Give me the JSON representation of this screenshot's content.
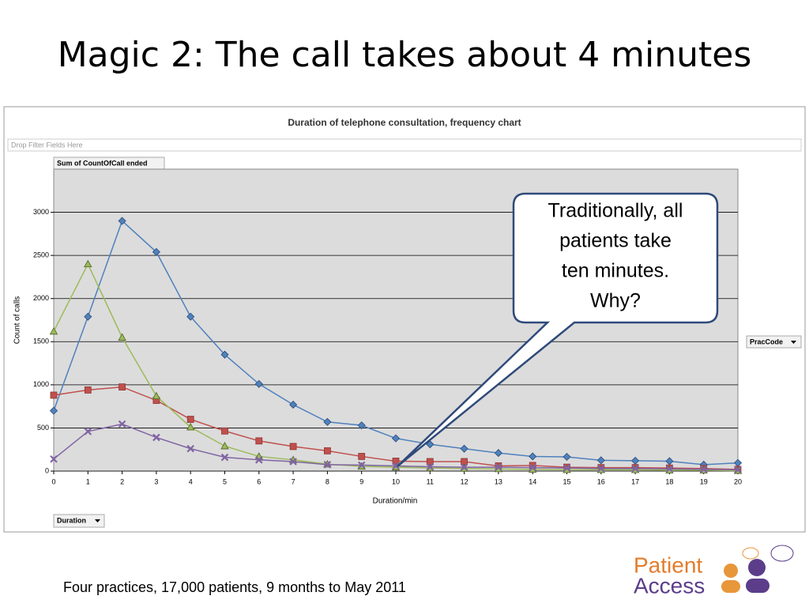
{
  "slide_title": "Magic 2: The call takes about 4 minutes",
  "chart_data": {
    "type": "line",
    "title": "Duration of telephone consultation, frequency chart",
    "x_label": "Duration/min",
    "y_label": "Count of calls",
    "x": [
      0,
      1,
      2,
      3,
      4,
      5,
      6,
      7,
      8,
      9,
      10,
      11,
      12,
      13,
      14,
      15,
      16,
      17,
      18,
      19,
      20
    ],
    "xlim": [
      0,
      20
    ],
    "xticks": [
      0,
      1,
      2,
      3,
      4,
      5,
      6,
      7,
      8,
      9,
      10,
      11,
      12,
      13,
      14,
      15,
      16,
      17,
      18,
      19,
      20
    ],
    "ylim": [
      0,
      3500
    ],
    "yticks": [
      0,
      500,
      1000,
      1500,
      2000,
      2500,
      3000
    ],
    "grid": true,
    "series": [
      {
        "color": "#4f81bd",
        "marker": "diamond",
        "values": [
          700,
          1790,
          2900,
          2540,
          1790,
          1350,
          1010,
          770,
          570,
          530,
          380,
          310,
          260,
          210,
          170,
          165,
          125,
          120,
          115,
          75,
          95
        ]
      },
      {
        "color": "#c0504d",
        "marker": "square",
        "values": [
          880,
          940,
          975,
          820,
          600,
          465,
          350,
          285,
          235,
          170,
          115,
          110,
          110,
          60,
          65,
          45,
          40,
          40,
          35,
          30,
          20
        ]
      },
      {
        "color": "#9bbb59",
        "marker": "triangle",
        "values": [
          1620,
          2400,
          1550,
          870,
          510,
          290,
          170,
          130,
          80,
          55,
          45,
          35,
          30,
          25,
          20,
          15,
          15,
          15,
          10,
          10,
          5
        ]
      },
      {
        "color": "#8064a2",
        "marker": "x",
        "values": [
          140,
          460,
          545,
          390,
          260,
          160,
          130,
          110,
          75,
          70,
          60,
          50,
          45,
          45,
          40,
          35,
          30,
          30,
          25,
          20,
          15
        ]
      }
    ]
  },
  "pivot": {
    "filter_zone": "Drop Filter Fields Here",
    "data_field": "Sum of CountOfCall ended",
    "axis_field": "Duration",
    "legend_field": "PracCode"
  },
  "callout": {
    "lines": [
      "Traditionally, all",
      "patients take",
      "ten minutes.",
      "Why?"
    ]
  },
  "footer": "Four practices, 17,000 patients, 9 months to May 2011",
  "logo": {
    "line1": "Patient",
    "line2": "Access"
  }
}
